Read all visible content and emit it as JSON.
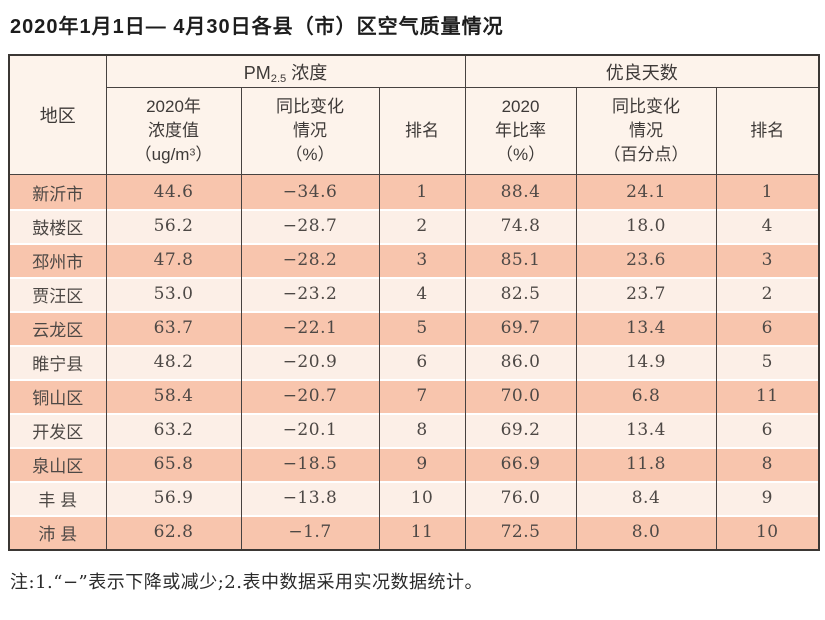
{
  "title": "2020年1月1日— 4月30日各县（市）区空气质量情况",
  "note": "注:1.“−”表示下降或减少;2.表中数据采用实况数据统计。",
  "colors": {
    "row_odd": "#f8c5ad",
    "row_even": "#fcefe7",
    "header_bg": "#fdf3eb",
    "border": "#474240",
    "text": "#4d4845"
  },
  "table": {
    "region_header": "地区",
    "pm_group": {
      "prefix": "PM",
      "sub": "2.5",
      "suffix": " 浓度"
    },
    "days_group": "优良天数",
    "sub_headers": {
      "pm_value": {
        "line1": "2020年",
        "line2": "浓度值",
        "unit_pre": "（ug/m",
        "unit_sup": "3",
        "unit_post": "）"
      },
      "pm_change": {
        "line1": "同比变化",
        "line2": "情况",
        "line3": "（%）"
      },
      "pm_rank": "排名",
      "days_ratio": {
        "line1": "2020",
        "line2": "年比率",
        "line3": "（%）"
      },
      "days_change": {
        "line1": "同比变化",
        "line2": "情况",
        "line3": "（百分点）"
      },
      "days_rank": "排名"
    },
    "rows": [
      {
        "region": "新沂市",
        "pm_value": "44.6",
        "pm_change": "−34.6",
        "pm_rank": "1",
        "days_ratio": "88.4",
        "days_change": "24.1",
        "days_rank": "1"
      },
      {
        "region": "鼓楼区",
        "pm_value": "56.2",
        "pm_change": "−28.7",
        "pm_rank": "2",
        "days_ratio": "74.8",
        "days_change": "18.0",
        "days_rank": "4"
      },
      {
        "region": "邳州市",
        "pm_value": "47.8",
        "pm_change": "−28.2",
        "pm_rank": "3",
        "days_ratio": "85.1",
        "days_change": "23.6",
        "days_rank": "3"
      },
      {
        "region": "贾汪区",
        "pm_value": "53.0",
        "pm_change": "−23.2",
        "pm_rank": "4",
        "days_ratio": "82.5",
        "days_change": "23.7",
        "days_rank": "2"
      },
      {
        "region": "云龙区",
        "pm_value": "63.7",
        "pm_change": "−22.1",
        "pm_rank": "5",
        "days_ratio": "69.7",
        "days_change": "13.4",
        "days_rank": "6"
      },
      {
        "region": "睢宁县",
        "pm_value": "48.2",
        "pm_change": "−20.9",
        "pm_rank": "6",
        "days_ratio": "86.0",
        "days_change": "14.9",
        "days_rank": "5"
      },
      {
        "region": "铜山区",
        "pm_value": "58.4",
        "pm_change": "−20.7",
        "pm_rank": "7",
        "days_ratio": "70.0",
        "days_change": "6.8",
        "days_rank": "11"
      },
      {
        "region": "开发区",
        "pm_value": "63.2",
        "pm_change": "−20.1",
        "pm_rank": "8",
        "days_ratio": "69.2",
        "days_change": "13.4",
        "days_rank": "6"
      },
      {
        "region": "泉山区",
        "pm_value": "65.8",
        "pm_change": "−18.5",
        "pm_rank": "9",
        "days_ratio": "66.9",
        "days_change": "11.8",
        "days_rank": "8"
      },
      {
        "region": "丰 县",
        "pm_value": "56.9",
        "pm_change": "−13.8",
        "pm_rank": "10",
        "days_ratio": "76.0",
        "days_change": "8.4",
        "days_rank": "9"
      },
      {
        "region": "沛 县",
        "pm_value": "62.8",
        "pm_change": "−1.7",
        "pm_rank": "11",
        "days_ratio": "72.5",
        "days_change": "8.0",
        "days_rank": "10"
      }
    ]
  },
  "chart_data": {
    "type": "table",
    "title": "2020年1月1日— 4月30日各县（市）区空气质量情况",
    "column_groups": [
      "PM2.5浓度",
      "优良天数"
    ],
    "columns": [
      "地区",
      "2020年浓度值（ug/m3）",
      "同比变化情况（%）",
      "排名",
      "2020年比率（%）",
      "同比变化情况（百分点）",
      "排名"
    ],
    "rows": [
      [
        "新沂市",
        44.6,
        -34.6,
        1,
        88.4,
        24.1,
        1
      ],
      [
        "鼓楼区",
        56.2,
        -28.7,
        2,
        74.8,
        18.0,
        4
      ],
      [
        "邳州市",
        47.8,
        -28.2,
        3,
        85.1,
        23.6,
        3
      ],
      [
        "贾汪区",
        53.0,
        -23.2,
        4,
        82.5,
        23.7,
        2
      ],
      [
        "云龙区",
        63.7,
        -22.1,
        5,
        69.7,
        13.4,
        6
      ],
      [
        "睢宁县",
        48.2,
        -20.9,
        6,
        86.0,
        14.9,
        5
      ],
      [
        "铜山区",
        58.4,
        -20.7,
        7,
        70.0,
        6.8,
        11
      ],
      [
        "开发区",
        63.2,
        -20.1,
        8,
        69.2,
        13.4,
        6
      ],
      [
        "泉山区",
        65.8,
        -18.5,
        9,
        66.9,
        11.8,
        8
      ],
      [
        "丰县",
        56.9,
        -13.8,
        10,
        76.0,
        8.4,
        9
      ],
      [
        "沛县",
        62.8,
        -1.7,
        11,
        72.5,
        8.0,
        10
      ]
    ],
    "note": "注:1.“−”表示下降或减少;2.表中数据采用实况数据统计。"
  }
}
